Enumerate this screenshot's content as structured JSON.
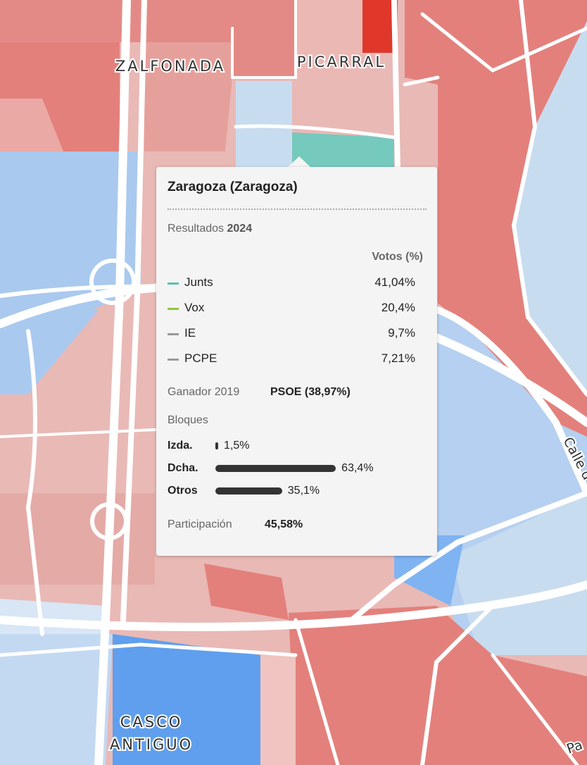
{
  "map_labels": {
    "zalfonada": "ZALFONADA",
    "picarral": "PICARRAL",
    "casco_antiguo": [
      "CASCO",
      "ANTIGUO"
    ],
    "calle": "Calle d",
    "pa": "Pa"
  },
  "tooltip": {
    "title": "Zaragoza (Zaragoza)",
    "results_label": "Resultados",
    "results_year": "2024",
    "votes_header": "Votos (%)",
    "parties": [
      {
        "name": "Junts",
        "color": "#5cc0b1",
        "value": "41,04%"
      },
      {
        "name": "Vox",
        "color": "#8ec641",
        "value": "20,4%"
      },
      {
        "name": "IE",
        "color": "#999999",
        "value": "9,7%"
      },
      {
        "name": "PCPE",
        "color": "#999999",
        "value": "7,21%"
      }
    ],
    "winner_label": "Ganador 2019",
    "winner": "PSOE (38,97%)",
    "blocs_label": "Bloques",
    "blocs": [
      {
        "name": "Izda.",
        "value": 1.5,
        "label": "1,5%"
      },
      {
        "name": "Dcha.",
        "value": 63.4,
        "label": "63,4%"
      },
      {
        "name": "Otros",
        "value": 35.1,
        "label": "35,1%"
      }
    ],
    "turnout_label": "Participación",
    "turnout": "45,58%"
  }
}
